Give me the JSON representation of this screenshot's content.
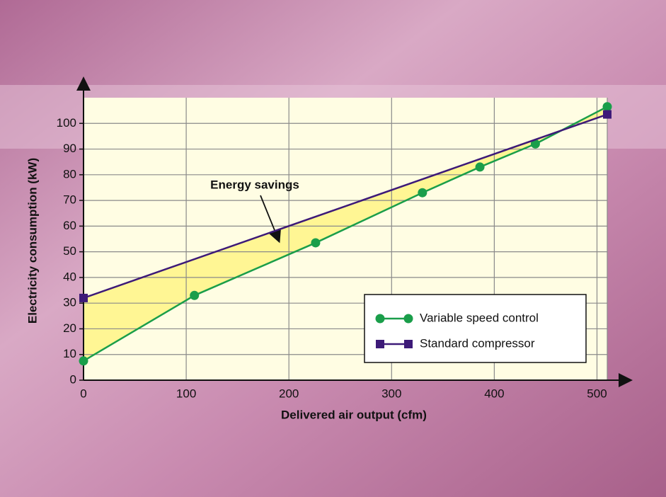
{
  "chart_data": {
    "type": "line",
    "annotation": "Energy savings",
    "xlabel": "Delivered air output (cfm)",
    "ylabel": "Electricity consumption (kW)",
    "xlim": [
      0,
      510
    ],
    "ylim": [
      0,
      110
    ],
    "xticks": [
      0,
      100,
      200,
      300,
      400,
      500
    ],
    "yticks": [
      0,
      10,
      20,
      30,
      40,
      50,
      60,
      70,
      80,
      90,
      100
    ],
    "grid": true,
    "legend": "lower right",
    "fill_between": true,
    "series": [
      {
        "name": "Variable speed control",
        "color": "#1a9e4a",
        "marker": "circle",
        "x": [
          0,
          108,
          226,
          330,
          386,
          440,
          510
        ],
        "values": [
          7.5,
          33,
          53.5,
          73,
          83,
          92,
          106.5
        ]
      },
      {
        "name": "Standard compressor",
        "color": "#3d1a78",
        "marker": "square",
        "x": [
          0,
          510
        ],
        "values": [
          32,
          103.5
        ]
      }
    ]
  }
}
